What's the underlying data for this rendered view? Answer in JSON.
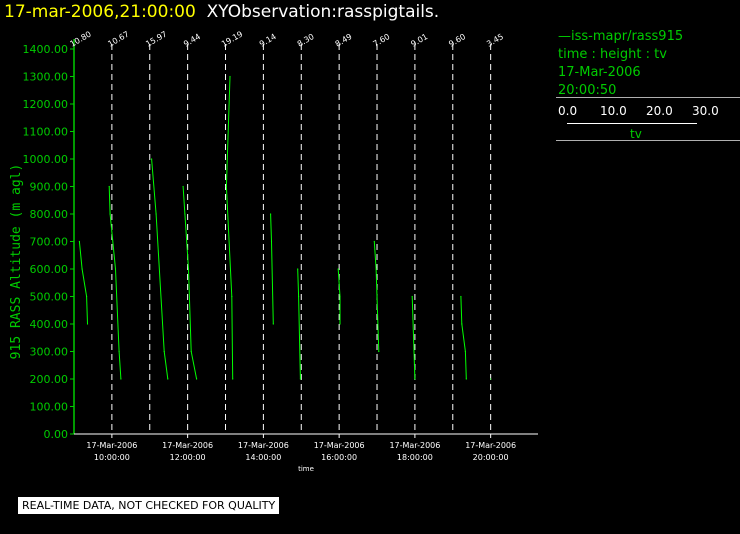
{
  "header": {
    "timestamp": "17-mar-2006,21:00:00",
    "title": "XYObservation:rasspigtails."
  },
  "legend": {
    "series_label": "—iss-mapr/rass915",
    "variables": "time : height : tv",
    "date": "17-Mar-2006",
    "time": "20:00:50",
    "scale_ticks": [
      "0.0",
      "10.0",
      "20.0",
      "30.0"
    ],
    "scale_label": "tv"
  },
  "disclaimer": "REAL-TIME DATA, NOT CHECKED FOR QUALITY",
  "colors": {
    "series": "#00ff00",
    "axis": "#00cc00",
    "grid": "#ffffff",
    "title": "#ffff00"
  },
  "chart_data": {
    "type": "line",
    "title": "XYObservation:rasspigtails.",
    "xlabel": "time",
    "ylabel": "915 RASS Altitude (m agl)",
    "ylim": [
      0,
      1400
    ],
    "y_ticks": [
      "0.00",
      "100.00",
      "200.00",
      "300.00",
      "400.00",
      "500.00",
      "600.00",
      "700.00",
      "800.00",
      "900.00",
      "1000.00",
      "1100.00",
      "1200.00",
      "1300.00",
      "1400.00"
    ],
    "x_ticks": [
      {
        "date": "17-Mar-2006",
        "time": "10:00:00"
      },
      {
        "date": "17-Mar-2006",
        "time": "12:00:00"
      },
      {
        "date": "17-Mar-2006",
        "time": "14:00:00"
      },
      {
        "date": "17-Mar-2006",
        "time": "16:00:00"
      },
      {
        "date": "17-Mar-2006",
        "time": "18:00:00"
      },
      {
        "date": "17-Mar-2006",
        "time": "20:00:00"
      }
    ],
    "x_hours_range": [
      9.0,
      21.25
    ],
    "profiles": [
      {
        "base_label": "10.80",
        "base_time": "09:00",
        "points": [
          [
            700,
            0.6
          ],
          [
            600,
            0.9
          ],
          [
            500,
            1.4
          ],
          [
            400,
            1.5
          ]
        ]
      },
      {
        "base_label": "10.67",
        "base_time": "10:00",
        "points": [
          [
            900,
            -0.3
          ],
          [
            800,
            -0.2
          ],
          [
            600,
            0.4
          ],
          [
            300,
            0.8
          ],
          [
            200,
            1.0
          ]
        ]
      },
      {
        "base_label": "15.97",
        "base_time": "11:00",
        "points": [
          [
            1000,
            0.2
          ],
          [
            800,
            0.7
          ],
          [
            300,
            1.6
          ],
          [
            200,
            2.0
          ]
        ]
      },
      {
        "base_label": "9.44",
        "base_time": "12:00",
        "points": [
          [
            900,
            -0.5
          ],
          [
            800,
            -0.3
          ],
          [
            600,
            0.1
          ],
          [
            300,
            0.4
          ],
          [
            200,
            1.0
          ]
        ]
      },
      {
        "base_label": "19.19",
        "base_time": "13:00",
        "points": [
          [
            1300,
            0.5
          ],
          [
            900,
            0.1
          ],
          [
            500,
            0.7
          ],
          [
            200,
            0.8
          ]
        ]
      },
      {
        "base_label": "9.14",
        "base_time": "14:00",
        "points": [
          [
            800,
            0.8
          ],
          [
            700,
            0.9
          ],
          [
            400,
            1.1
          ]
        ]
      },
      {
        "base_label": "8.30",
        "base_time": "15:00",
        "points": [
          [
            600,
            -0.4
          ],
          [
            500,
            -0.3
          ],
          [
            200,
            -0.1
          ]
        ]
      },
      {
        "base_label": "8.49",
        "base_time": "16:00",
        "points": [
          [
            600,
            -0.1
          ],
          [
            500,
            0.1
          ],
          [
            400,
            0.1
          ]
        ]
      },
      {
        "base_label": "7.60",
        "base_time": "17:00",
        "points": [
          [
            700,
            -0.3
          ],
          [
            600,
            -0.1
          ],
          [
            300,
            0.2
          ]
        ]
      },
      {
        "base_label": "9.01",
        "base_time": "18:00",
        "points": [
          [
            500,
            -0.3
          ],
          [
            200,
            0.0
          ]
        ]
      },
      {
        "base_label": "9.60",
        "base_time": "19:00",
        "points": [
          [
            500,
            0.9
          ],
          [
            400,
            1.0
          ],
          [
            300,
            1.4
          ],
          [
            200,
            1.5
          ]
        ]
      },
      {
        "base_label": "3.45",
        "base_time": "20:00",
        "points": [
          [
            200,
            0.0
          ]
        ]
      }
    ]
  }
}
